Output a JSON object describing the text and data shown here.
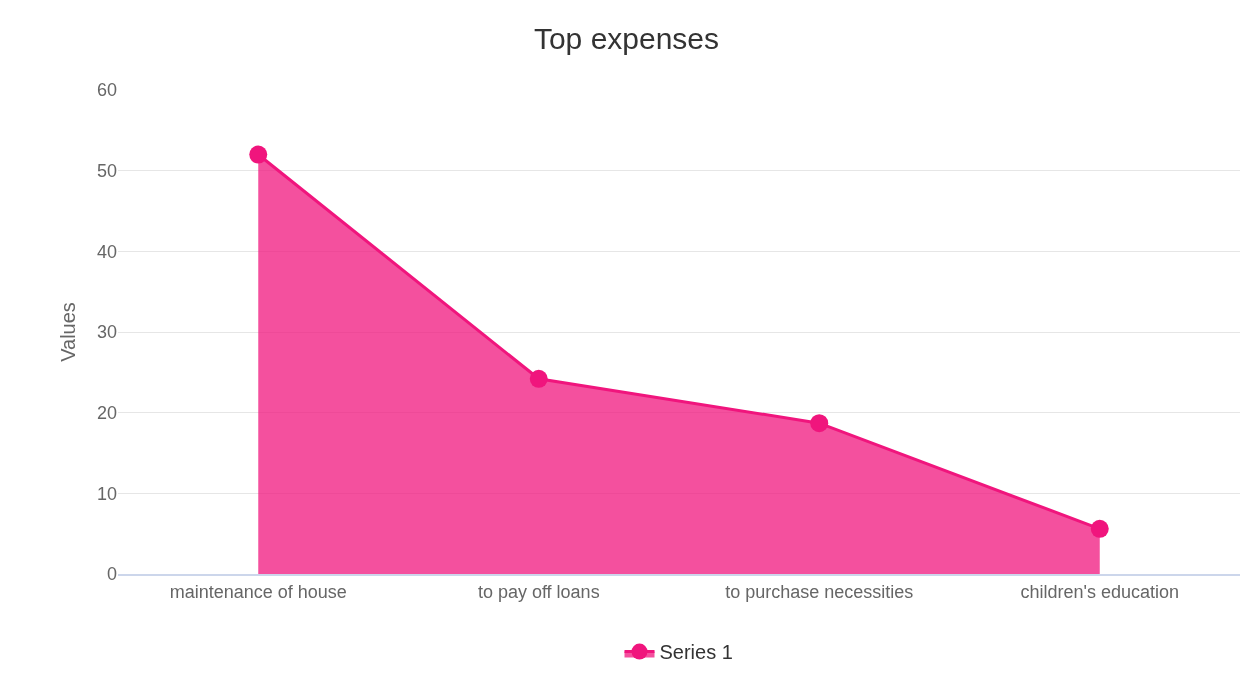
{
  "chart_data": {
    "type": "area",
    "title": "Top expenses",
    "ylabel": "Values",
    "categories": [
      "maintenance of house",
      "to pay off loans",
      "to purchase necessities",
      "children's education"
    ],
    "series": [
      {
        "name": "Series 1",
        "color": "#f0157d",
        "values": [
          52,
          24.2,
          18.7,
          5.6
        ]
      }
    ],
    "ylim": [
      0,
      60
    ],
    "yticks": [
      0,
      10,
      20,
      30,
      40,
      50,
      60
    ],
    "grid": "y",
    "legend": "bottom",
    "marker": "circle",
    "line_style": "solid"
  }
}
